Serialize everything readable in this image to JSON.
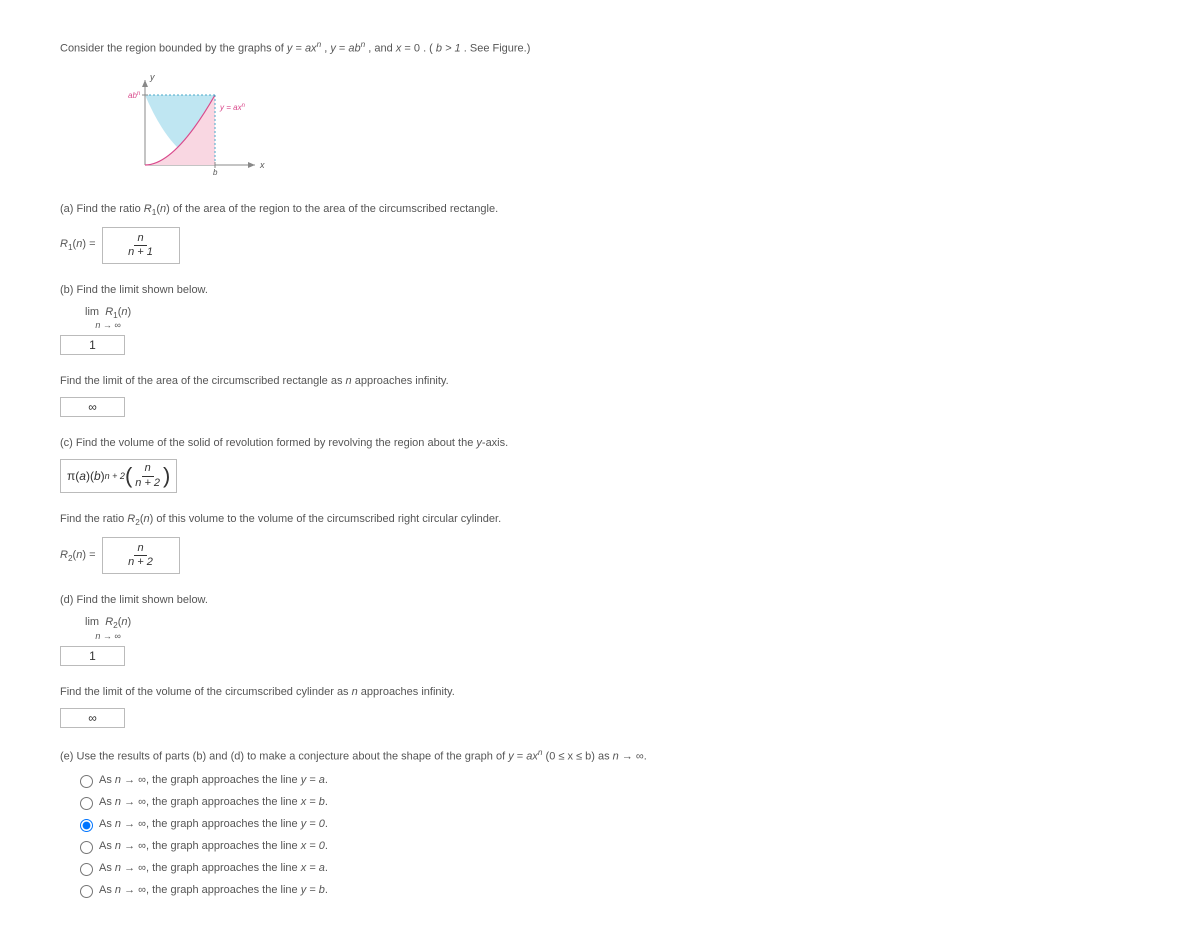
{
  "intro": {
    "prefix": "Consider the region bounded by the graphs of ",
    "eq1_lhs": "y",
    "eq1_rhs_a": "ax",
    "eq1_rhs_exp": "n",
    "eq2_lhs": "y",
    "eq2_rhs_a": "ab",
    "eq2_rhs_exp": "n",
    "eq3_lhs": "x",
    "eq3_rhs": "0",
    "cond": "b > 1",
    "suffix": ". See Figure.)"
  },
  "figure": {
    "y_label": "y",
    "x_label": "x",
    "top_label_a": "ab",
    "top_label_exp": "n",
    "curve_label_lhs": "y = ax",
    "curve_label_exp": "n",
    "b_label": "b",
    "colors": {
      "fill_upper": "#bfe6f2",
      "fill_lower": "#f9d7e2",
      "curve": "#d94a8c",
      "axis": "#888",
      "tick": "#888",
      "label": "#d94a8c"
    }
  },
  "a": {
    "prompt_prefix": "(a) Find the ratio ",
    "ratio_sym": "R",
    "ratio_sub": "1",
    "ratio_arg": "n",
    "prompt_suffix": " of the area of the region to the area of the circumscribed rectangle.",
    "label_lhs": "R",
    "label_sub": "1",
    "label_arg": "n",
    "answer_num": "n",
    "answer_den": "n + 1"
  },
  "b": {
    "prompt": "(b) Find the limit shown below.",
    "lim_word": "lim",
    "lim_sub": "n → ∞",
    "lim_fn": "R",
    "lim_fn_sub": "1",
    "lim_fn_arg": "n",
    "answer": "1",
    "prompt2_prefix": "Find the limit of the area of the circumscribed rectangle as ",
    "prompt2_var": "n",
    "prompt2_suffix": " approaches infinity.",
    "answer2": "∞"
  },
  "c": {
    "prompt_prefix": "(c) Find the volume of the solid of revolution formed by revolving the region about the ",
    "axis_var": "y",
    "prompt_suffix": "-axis.",
    "ans_pi": "π",
    "ans_a": "a",
    "ans_b": "b",
    "ans_exp_base": "n + 2",
    "ans_frac_num": "n",
    "ans_frac_den": "n + 2",
    "prompt2_prefix": "Find the ratio ",
    "r2_sym": "R",
    "r2_sub": "2",
    "r2_arg": "n",
    "prompt2_suffix": " of this volume to the volume of the circumscribed right circular cylinder.",
    "label2_lhs": "R",
    "label2_sub": "2",
    "label2_arg": "n",
    "answer2_num": "n",
    "answer2_den": "n + 2"
  },
  "d": {
    "prompt": "(d) Find the limit shown below.",
    "lim_word": "lim",
    "lim_sub": "n → ∞",
    "lim_fn": "R",
    "lim_fn_sub": "2",
    "lim_fn_arg": "n",
    "answer": "1",
    "prompt2_prefix": "Find the limit of the volume of the circumscribed cylinder as ",
    "prompt2_var": "n",
    "prompt2_suffix": " approaches infinity.",
    "answer2": "∞"
  },
  "e": {
    "prompt_prefix": "(e) Use the results of parts (b) and (d) to make a conjecture about the shape of the graph of ",
    "eq_lhs": "y",
    "eq_rhs_a": "ax",
    "eq_rhs_exp": "n",
    "domain": " (0 ≤ x ≤ b)",
    "as_prefix": " as ",
    "as_var": "n",
    "as_suffix": " → ∞.",
    "options": [
      {
        "prefix": "As ",
        "var": "n",
        "mid": " → ∞, the graph approaches the line ",
        "eq": "y = a",
        "suffix": "."
      },
      {
        "prefix": "As ",
        "var": "n",
        "mid": " → ∞, the graph approaches the line ",
        "eq": "x = b",
        "suffix": "."
      },
      {
        "prefix": "As ",
        "var": "n",
        "mid": " → ∞, the graph approaches the line ",
        "eq": "y = 0",
        "suffix": "."
      },
      {
        "prefix": "As ",
        "var": "n",
        "mid": " → ∞, the graph approaches the line ",
        "eq": "x = 0",
        "suffix": "."
      },
      {
        "prefix": "As ",
        "var": "n",
        "mid": " → ∞, the graph approaches the line ",
        "eq": "x = a",
        "suffix": "."
      },
      {
        "prefix": "As ",
        "var": "n",
        "mid": " → ∞, the graph approaches the line ",
        "eq": "y = b",
        "suffix": "."
      }
    ],
    "selected_index": 2
  }
}
